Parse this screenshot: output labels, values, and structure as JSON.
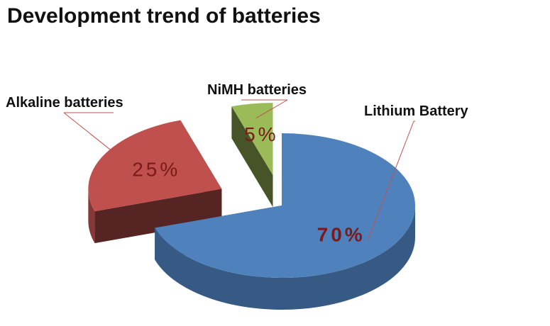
{
  "chart_data": {
    "type": "pie",
    "title": "Development trend of batteries",
    "categories": [
      "Lithium Battery",
      "Alkaline batteries",
      "NiMH batteries"
    ],
    "values": [
      70,
      25,
      5
    ],
    "value_labels": [
      "70%",
      "25%",
      "5%"
    ],
    "colors": [
      "#4f81bd",
      "#c0504d",
      "#9bbb59"
    ]
  }
}
